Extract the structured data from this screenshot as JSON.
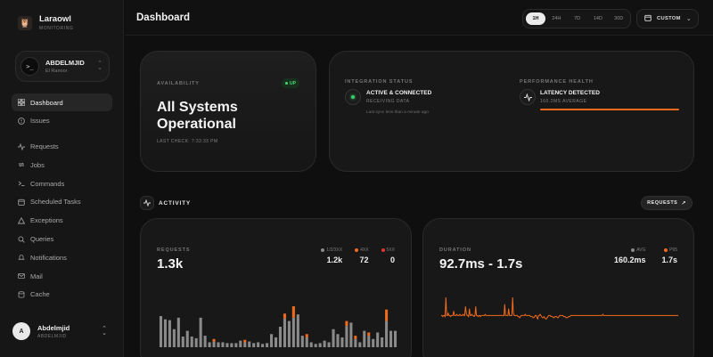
{
  "brand": {
    "name": "Laraowl",
    "subtitle": "MONITORING",
    "logo_icon": "owl-icon"
  },
  "account": {
    "name": "ABDELMJID",
    "subtitle": "El Ranoor",
    "icon": "terminal-icon"
  },
  "nav": {
    "primary": [
      {
        "label": "Dashboard",
        "icon": "grid-icon",
        "active": true
      },
      {
        "label": "Issues",
        "icon": "alert-circle-icon",
        "active": false
      }
    ],
    "secondary": [
      {
        "label": "Requests",
        "icon": "pulse-icon"
      },
      {
        "label": "Jobs",
        "icon": "repeat-icon"
      },
      {
        "label": "Commands",
        "icon": "terminal-icon"
      },
      {
        "label": "Scheduled Tasks",
        "icon": "calendar-icon"
      },
      {
        "label": "Exceptions",
        "icon": "warning-icon"
      },
      {
        "label": "Queries",
        "icon": "search-icon"
      },
      {
        "label": "Notifications",
        "icon": "bell-icon"
      },
      {
        "label": "Mail",
        "icon": "mail-icon"
      },
      {
        "label": "Cache",
        "icon": "database-icon"
      }
    ]
  },
  "user": {
    "initial": "A",
    "name": "Abdelmjid",
    "subtitle": "ABDELMJID"
  },
  "header": {
    "title": "Dashboard",
    "ranges": [
      "1H",
      "24H",
      "7D",
      "14D",
      "30D"
    ],
    "active_range": "1H",
    "custom_label": "CUSTOM"
  },
  "availability": {
    "label": "AVAILABILITY",
    "badge": "UP",
    "headline": "All Systems Operational",
    "last_check": "LAST CHECK: 7:33:33 PM"
  },
  "integration": {
    "label": "INTEGRATION STATUS",
    "title": "ACTIVE & CONNECTED",
    "subtitle": "RECEIVING DATA",
    "note": "Last sync less than a minute ago"
  },
  "performance": {
    "label": "PERFORMANCE HEALTH",
    "title": "LATENCY DETECTED",
    "subtitle": "160.2MS AVERAGE",
    "level": 1.0
  },
  "activity": {
    "title": "ACTIVITY",
    "button": "REQUESTS"
  },
  "colors": {
    "accent": "#f06a1c",
    "ok": "#3acb6a",
    "error": "#e0342f",
    "neutral": "#8a8a8a"
  },
  "requests_card": {
    "label": "REQUESTS",
    "value": "1.3k",
    "legend": [
      {
        "name": "1/2/3XX",
        "value": "1.2k",
        "color": "#8a8a8a"
      },
      {
        "name": "4XX",
        "value": "72",
        "color": "#f06a1c"
      },
      {
        "name": "5XX",
        "value": "0",
        "color": "#e0342f"
      }
    ]
  },
  "duration_card": {
    "label": "DURATION",
    "value": "92.7ms - 1.7s",
    "legend": [
      {
        "name": "AVG",
        "value": "160.2ms",
        "color": "#8a8a8a"
      },
      {
        "name": "P95",
        "value": "1.7s",
        "color": "#f06a1c"
      }
    ]
  },
  "chart_data": [
    {
      "type": "bar",
      "series": [
        {
          "name": "1/2/3XX",
          "values": [
            38,
            34,
            33,
            22,
            36,
            13,
            20,
            13,
            11,
            36,
            14,
            6,
            7,
            6,
            6,
            5,
            5,
            5,
            8,
            6,
            7,
            5,
            6,
            4,
            5,
            16,
            12,
            25,
            35,
            32,
            36,
            40,
            14,
            12,
            6,
            4,
            5,
            8,
            6,
            22,
            16,
            12,
            26,
            30,
            10,
            6,
            20,
            14,
            10,
            18,
            12,
            32,
            20,
            20
          ]
        },
        {
          "name": "4XX",
          "values": [
            0,
            0,
            0,
            0,
            0,
            0,
            0,
            0,
            0,
            0,
            0,
            0,
            3,
            0,
            0,
            0,
            0,
            0,
            0,
            3,
            0,
            0,
            0,
            0,
            0,
            0,
            0,
            0,
            6,
            0,
            14,
            0,
            0,
            4,
            0,
            0,
            0,
            0,
            0,
            0,
            0,
            0,
            6,
            0,
            4,
            0,
            0,
            4,
            0,
            0,
            0,
            14,
            0,
            0
          ]
        },
        {
          "name": "5XX",
          "values": []
        }
      ]
    },
    {
      "type": "line",
      "series": [
        {
          "name": "P95",
          "values": [
            6,
            6,
            5,
            6,
            6,
            5,
            22,
            6,
            6,
            8,
            6,
            6,
            5,
            6,
            6,
            6,
            10,
            6,
            6,
            6,
            7,
            6,
            6,
            6,
            7,
            6,
            6,
            6,
            7,
            6,
            6,
            14,
            8,
            6,
            6,
            5,
            12,
            6,
            6,
            7,
            6,
            6,
            5,
            6,
            14,
            6,
            6,
            5,
            6,
            6,
            5,
            6,
            6,
            6,
            6,
            6,
            7,
            6,
            6,
            6,
            6,
            6,
            6,
            6,
            6,
            6,
            6,
            6,
            6,
            6,
            6,
            6,
            6,
            6,
            6,
            6,
            6,
            6,
            6,
            6,
            6,
            16,
            6,
            6,
            6,
            6,
            12,
            6,
            6,
            6,
            6,
            22,
            8,
            6,
            6,
            6,
            6,
            6,
            5,
            5,
            4,
            5,
            6,
            6,
            6,
            6,
            6,
            7,
            6,
            6,
            6,
            6,
            6,
            6,
            5,
            5,
            5,
            4,
            4,
            5,
            6,
            6,
            4,
            3,
            6,
            6,
            7,
            6,
            5,
            4,
            4,
            5,
            4,
            3,
            3,
            4,
            5,
            6,
            6,
            6,
            5,
            5,
            5,
            4,
            4,
            5,
            5,
            5,
            4,
            4,
            5,
            6,
            6,
            6,
            6,
            6,
            5,
            5,
            5,
            4,
            4,
            4,
            5,
            5,
            5,
            6,
            6,
            6,
            6,
            6,
            6,
            6,
            6,
            6,
            6,
            6,
            6,
            6,
            6,
            6,
            6,
            6,
            6,
            6,
            6,
            6,
            6,
            6,
            6,
            6,
            6,
            6,
            6,
            6,
            6,
            6,
            6,
            6,
            6,
            6,
            6,
            6,
            6,
            6,
            6,
            6,
            7,
            6,
            6,
            6,
            6,
            6,
            6,
            6,
            6,
            6,
            6,
            6,
            6,
            6,
            6,
            6,
            6,
            6,
            6,
            6,
            6,
            6,
            6,
            6,
            6,
            6,
            6,
            6,
            6,
            6,
            6,
            6,
            6,
            6,
            6,
            6,
            6,
            6,
            6,
            6,
            6,
            6,
            6,
            6,
            6,
            6,
            6,
            6,
            6,
            6,
            6,
            6,
            6,
            6,
            6,
            6,
            6,
            6,
            6,
            6,
            6,
            6,
            6,
            6,
            6,
            6,
            6,
            6,
            6,
            6,
            6,
            6,
            6,
            6,
            6,
            6,
            6,
            6,
            6,
            6,
            6,
            6,
            6,
            6,
            6,
            6,
            6,
            6,
            6,
            6,
            6,
            6,
            6,
            6,
            6,
            6,
            6
          ]
        }
      ]
    }
  ]
}
